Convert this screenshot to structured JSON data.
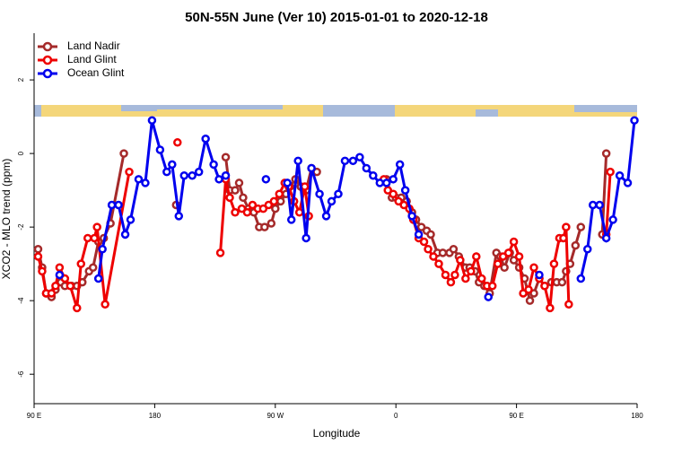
{
  "chart_data": {
    "type": "line",
    "title": "50N-55N June (Ver 10)   2015-01-01 to 2020-12-18",
    "x_label": "Longitude",
    "y_label": "XCO2 - MLO trend (ppm)",
    "xlim": [
      90,
      540
    ],
    "ylim": [
      -6.8,
      3.27
    ],
    "xticks": [
      {
        "value": 90,
        "label": "90 E"
      },
      {
        "value": 180,
        "label": "180"
      },
      {
        "value": 270,
        "label": "90 W"
      },
      {
        "value": 360,
        "label": "0"
      },
      {
        "value": 450,
        "label": "90 E"
      },
      {
        "value": 540,
        "label": "180"
      }
    ],
    "yticks": [
      2,
      0,
      -2,
      -4,
      -6
    ],
    "legend": "top-left",
    "series": [
      {
        "name": "Land Nadir",
        "color": "#a52a2a",
        "x": [
          93,
          96,
          99,
          103,
          106,
          110,
          113,
          118,
          122,
          126,
          131,
          134,
          138,
          142,
          147,
          157,
          null,
          196,
          null,
          233,
          236,
          240,
          243,
          246,
          250,
          254,
          258,
          262,
          267,
          270,
          274,
          278,
          281,
          285,
          289,
          293,
          297,
          301,
          null,
          353,
          357,
          360,
          364,
          368,
          372,
          375,
          379,
          383,
          386,
          391,
          395,
          400,
          403,
          407,
          412,
          415,
          419,
          422,
          426,
          430,
          435,
          438,
          441,
          445,
          448,
          452,
          456,
          460,
          463,
          467,
          471,
          476,
          480,
          484,
          487,
          490,
          494,
          498,
          null,
          514,
          517
        ],
        "values": [
          -2.6,
          -3.1,
          -3.8,
          -3.9,
          -3.7,
          -3.5,
          -3.6,
          -3.6,
          -3.6,
          -3.5,
          -3.2,
          -3.1,
          -2.4,
          -2.3,
          -1.9,
          0.0,
          null,
          -1.4,
          null,
          -0.1,
          -1.0,
          -1.0,
          -0.8,
          -1.2,
          -1.5,
          -1.6,
          -2.0,
          -2.0,
          -1.9,
          -1.5,
          -1.3,
          -1.1,
          -0.9,
          -0.7,
          -0.9,
          -1.0,
          -0.4,
          -0.5,
          null,
          -0.7,
          -1.2,
          -1.2,
          -1.2,
          -1.3,
          -1.6,
          -1.8,
          -2.0,
          -2.1,
          -2.2,
          -2.7,
          -2.7,
          -2.7,
          -2.6,
          -2.8,
          -3.1,
          -3.1,
          -3.2,
          -3.5,
          -3.6,
          -3.8,
          -2.7,
          -2.8,
          -3.1,
          -2.7,
          -2.9,
          -3.1,
          -3.4,
          -4.0,
          -3.8,
          -3.4,
          -3.6,
          -3.5,
          -3.5,
          -3.5,
          -3.2,
          -3.0,
          -2.5,
          -2.0,
          null,
          -2.2,
          0.0
        ]
      },
      {
        "name": "Land Glint",
        "color": "#ee0000",
        "x": [
          93,
          96,
          99,
          103,
          106,
          109,
          113,
          117,
          122,
          125,
          130,
          135,
          137,
          143,
          161,
          null,
          197,
          null,
          229,
          233,
          236,
          240,
          245,
          249,
          253,
          257,
          261,
          265,
          269,
          273,
          277,
          280,
          284,
          288,
          292,
          295,
          null,
          351,
          354,
          358,
          362,
          366,
          370,
          373,
          377,
          381,
          384,
          388,
          392,
          397,
          401,
          404,
          408,
          412,
          416,
          420,
          424,
          428,
          432,
          436,
          440,
          444,
          448,
          452,
          455,
          459,
          463,
          467,
          471,
          475,
          478,
          482,
          485,
          487,
          489,
          null,
          517,
          520
        ],
        "values": [
          -2.8,
          -3.2,
          -3.8,
          -3.8,
          -3.6,
          -3.1,
          -3.4,
          -3.6,
          -4.2,
          -3.0,
          -2.3,
          -2.3,
          -2.0,
          -4.1,
          -0.5,
          null,
          0.3,
          null,
          -2.7,
          -0.7,
          -1.2,
          -1.6,
          -1.5,
          -1.6,
          -1.4,
          -1.5,
          -1.5,
          -1.4,
          -1.3,
          -1.1,
          -0.8,
          -0.9,
          -1.3,
          -1.6,
          -0.9,
          -1.7,
          null,
          -0.7,
          -1.0,
          -1.1,
          -1.3,
          -1.4,
          -1.5,
          -1.8,
          -2.3,
          -2.4,
          -2.6,
          -2.8,
          -3.0,
          -3.3,
          -3.5,
          -3.3,
          -2.9,
          -3.4,
          -3.2,
          -2.8,
          -3.4,
          -3.6,
          -3.6,
          -3.0,
          -2.8,
          -2.7,
          -2.4,
          -2.8,
          -3.8,
          -3.7,
          -3.1,
          -3.4,
          -3.6,
          -4.2,
          -3.0,
          -2.3,
          -2.3,
          -2.0,
          -4.1,
          null,
          -2.2,
          -0.5
        ]
      },
      {
        "name": "Ocean Glint",
        "color": "#0000ee",
        "x": [
          109,
          null,
          138,
          141,
          148,
          153,
          158,
          162,
          168,
          173,
          178,
          184,
          189,
          193,
          198,
          202,
          208,
          213,
          218,
          224,
          228,
          233,
          null,
          263,
          null,
          279,
          282,
          287,
          293,
          297,
          303,
          308,
          312,
          317,
          322,
          328,
          333,
          338,
          343,
          348,
          353,
          358,
          363,
          367,
          372,
          377,
          null,
          429,
          null,
          467,
          null,
          498,
          503,
          507,
          512,
          517,
          522,
          527,
          533,
          538
        ],
        "values": [
          -3.3,
          null,
          -3.4,
          -2.6,
          -1.4,
          -1.4,
          -2.2,
          -1.8,
          -0.7,
          -0.8,
          0.9,
          0.1,
          -0.5,
          -0.3,
          -1.7,
          -0.6,
          -0.6,
          -0.5,
          0.4,
          -0.3,
          -0.7,
          -0.6,
          null,
          -0.7,
          null,
          -0.8,
          -1.8,
          -0.2,
          -2.3,
          -0.4,
          -1.1,
          -1.7,
          -1.3,
          -1.1,
          -0.2,
          -0.2,
          -0.1,
          -0.4,
          -0.6,
          -0.8,
          -0.8,
          -0.7,
          -0.3,
          -1.0,
          -1.7,
          -2.2,
          null,
          -3.9,
          null,
          -3.3,
          null,
          -3.4,
          -2.6,
          -1.4,
          -1.4,
          -2.3,
          -1.8,
          -0.6,
          -0.8,
          0.9
        ]
      }
    ]
  }
}
